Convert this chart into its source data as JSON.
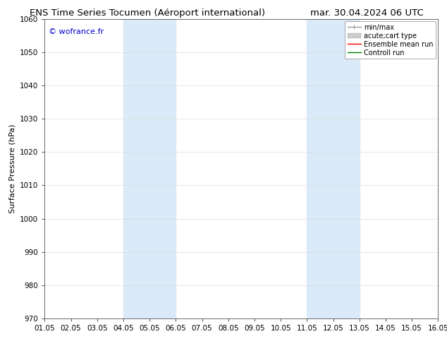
{
  "title_left": "ENS Time Series Tocumen (Aéroport international)",
  "title_right": "mar. 30.04.2024 06 UTC",
  "ylabel": "Surface Pressure (hPa)",
  "watermark": "© wofrance.fr",
  "watermark_color": "#0000cc",
  "xlim_start": 0,
  "xlim_end": 15,
  "ylim_bottom": 970,
  "ylim_top": 1060,
  "yticks": [
    970,
    980,
    990,
    1000,
    1010,
    1020,
    1030,
    1040,
    1050,
    1060
  ],
  "xtick_labels": [
    "01.05",
    "02.05",
    "03.05",
    "04.05",
    "05.05",
    "06.05",
    "07.05",
    "08.05",
    "09.05",
    "10.05",
    "11.05",
    "12.05",
    "13.05",
    "14.05",
    "15.05",
    "16.05"
  ],
  "shaded_bands": [
    {
      "xmin": 3.0,
      "xmax": 5.0,
      "color": "#daeaf8"
    },
    {
      "xmin": 10.0,
      "xmax": 12.0,
      "color": "#daeaf8"
    }
  ],
  "background_color": "#ffffff",
  "legend_entries": [
    {
      "label": "min/max",
      "color": "#999999",
      "lw": 1.0,
      "style": "minmax"
    },
    {
      "label": "acute;cart type",
      "color": "#cccccc",
      "lw": 6,
      "style": "patch"
    },
    {
      "label": "Ensemble mean run",
      "color": "#ff0000",
      "lw": 1.0,
      "style": "solid"
    },
    {
      "label": "Controll run",
      "color": "#008000",
      "lw": 1.0,
      "style": "solid"
    }
  ],
  "title_fontsize": 9.5,
  "axis_label_fontsize": 8,
  "tick_fontsize": 7.5,
  "legend_fontsize": 7.0,
  "ylabel_fontsize": 8
}
